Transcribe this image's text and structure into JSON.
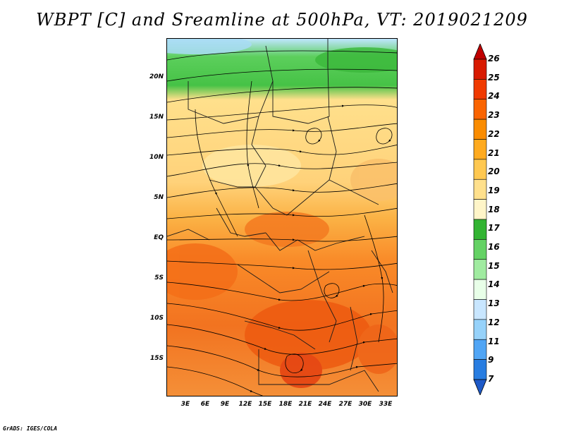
{
  "title": "WBPT [C] and Sreamline at 500hPa, VT: 2019021209",
  "credit": "GrADS: IGES/COLA",
  "lat_labels": [
    "20N",
    "15N",
    "10N",
    "5N",
    "EQ",
    "5S",
    "10S",
    "15S"
  ],
  "lon_labels": [
    "3E",
    "6E",
    "9E",
    "12E",
    "15E",
    "18E",
    "21E",
    "24E",
    "27E",
    "30E",
    "33E"
  ],
  "colorbar": {
    "labels": [
      "26",
      "25",
      "24",
      "23",
      "22",
      "21",
      "20",
      "19",
      "18",
      "17",
      "16",
      "15",
      "14",
      "13",
      "12",
      "11",
      "9",
      "7"
    ],
    "colors": [
      "#c00000",
      "#d81a00",
      "#f03a00",
      "#fa6400",
      "#fa8c00",
      "#ffaa1e",
      "#ffc850",
      "#ffe08c",
      "#fff5c8",
      "#32b432",
      "#64d264",
      "#a0eba0",
      "#e8ffe8",
      "#c8e6ff",
      "#96d2fa",
      "#50a5f5",
      "#287de1",
      "#1e5ac8"
    ]
  }
}
